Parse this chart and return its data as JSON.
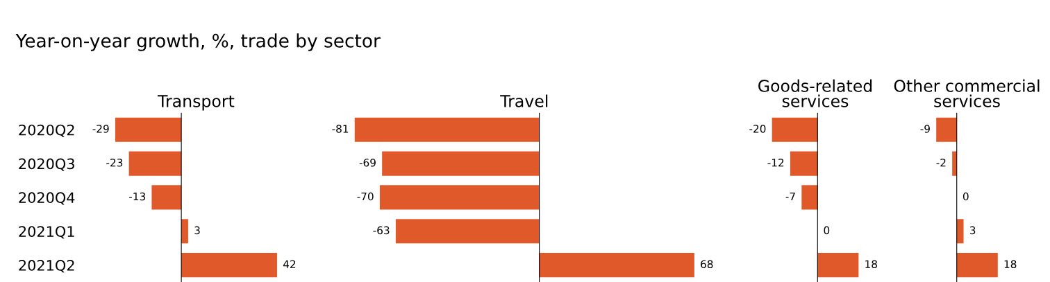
{
  "chart_data": [
    {
      "type": "bar",
      "orientation": "horizontal",
      "title": "Transport",
      "annotations": [
        "Year-on-year growth, %, trade by sector"
      ],
      "categories": [
        "2020Q2",
        "2020Q3",
        "2020Q4",
        "2021Q1",
        "2021Q2"
      ],
      "values": [
        -29,
        -23,
        -13,
        3,
        42
      ],
      "color": "#e0592a",
      "data_labels": true,
      "tick_labels": "y",
      "legend": false,
      "grid": false
    },
    {
      "type": "bar",
      "orientation": "horizontal",
      "title": "Travel",
      "categories": [
        null,
        null,
        null,
        null,
        null
      ],
      "values": [
        -81,
        -69,
        -70,
        -63,
        68
      ],
      "color": "#e0592a",
      "data_labels": true,
      "tick_labels": false,
      "legend": false,
      "grid": false
    },
    {
      "type": "bar",
      "orientation": "horizontal",
      "title": "Goods-related\nservices",
      "categories": [
        null,
        null,
        null,
        null,
        null
      ],
      "values": [
        -20,
        -12,
        -7,
        0,
        18
      ],
      "color": "#e0592a",
      "data_labels": true,
      "tick_labels": false,
      "legend": false,
      "grid": false
    },
    {
      "type": "bar",
      "orientation": "horizontal",
      "title": "Other commercial\nservices",
      "categories": [
        null,
        null,
        null,
        null,
        null
      ],
      "values": [
        -9,
        -2,
        0,
        3,
        18
      ],
      "color": "#e0592a",
      "data_labels": true,
      "tick_labels": false,
      "legend": false,
      "grid": false
    }
  ]
}
